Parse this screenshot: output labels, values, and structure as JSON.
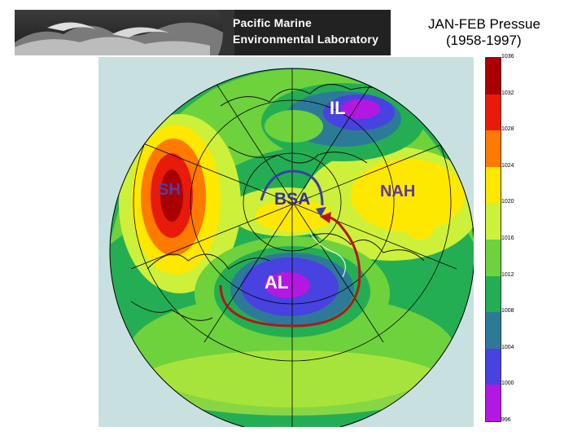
{
  "banner": {
    "line1": "Pacific Marine",
    "line2": "Environmental Laboratory"
  },
  "title": {
    "line1": "JAN-FEB Pressue",
    "line2": "(1958-1997)"
  },
  "map": {
    "labels": {
      "il": "IL",
      "sh": "SH",
      "bsa": "BSA",
      "nah": "NAH",
      "al": "AL"
    },
    "colors": {
      "ocean_bg": "#c8e0e0",
      "arrow": "#b01818",
      "bsa_arrow": "#3a40a0"
    }
  },
  "colorbar": {
    "ticks": [
      "1036",
      "1032",
      "1028",
      "1024",
      "1020",
      "1016",
      "1012",
      "1008",
      "1004",
      "1000",
      "996"
    ],
    "colors": [
      "#a80000",
      "#e81a0a",
      "#ff7a00",
      "#ffe800",
      "#cdf03a",
      "#6ed23c",
      "#24ae54",
      "#2d7a98",
      "#4842e0",
      "#b418e0"
    ]
  }
}
